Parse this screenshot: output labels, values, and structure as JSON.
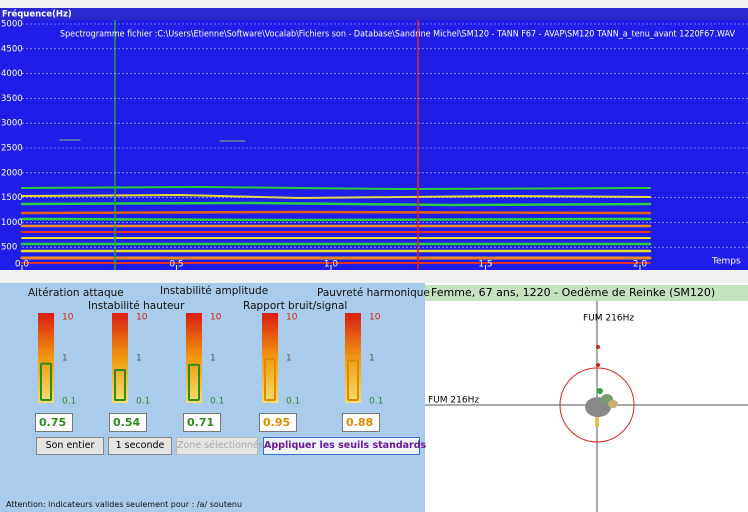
{
  "spectrogram": {
    "axis_title": "Fréquence(Hz)",
    "title": "Spectrogramme fichier :C:\\Users\\Etienne\\Software\\Vocalab\\Fichiers son - Database\\Sandrine Michel\\SM120 - TANN F67 - AVAP\\SM120 TANN_a_tenu_avant 1220F67.WAV",
    "ylim": [
      0,
      5000
    ],
    "yticks": [
      5000,
      4500,
      4000,
      3500,
      3000,
      2500,
      2000,
      1500,
      1000,
      500
    ],
    "xlim": [
      0,
      2.35
    ],
    "xticks": [
      {
        "value": 0,
        "label": "0.0"
      },
      0.5,
      {
        "value": 1,
        "label": "1.0"
      },
      1.5,
      {
        "value": 2,
        "label": "2.0"
      }
    ],
    "x_label": "Temps"
  },
  "indicators": {
    "gauge_scale": [
      "10",
      "1",
      "0.1"
    ],
    "items": [
      {
        "label": "Altération attaque",
        "value": 0.75,
        "color": "#2e8b1e"
      },
      {
        "label": "Instabilité hauteur",
        "value": 0.54,
        "color": "#2e8b1e"
      },
      {
        "label": "Instabilité amplitude",
        "value": 0.71,
        "color": "#2e8b1e"
      },
      {
        "label": "Rapport bruit/signal",
        "value": 0.95,
        "color": "#e08a00"
      },
      {
        "label": "Pauvreté harmonique",
        "value": 0.88,
        "color": "#e08a00"
      }
    ],
    "buttons": [
      "Son entier",
      "1 seconde",
      "Zone sélectionnée",
      "Appliquer les seuils standards"
    ],
    "note": "Attention: indicateurs valides seulement pour : /a/ soutenu"
  },
  "plot": {
    "header": "Femme, 67 ans, 1220 -  Oedème de Reinke (SM120)",
    "top_label": "FUM 216Hz",
    "left_label": "FUM 216Hz"
  }
}
